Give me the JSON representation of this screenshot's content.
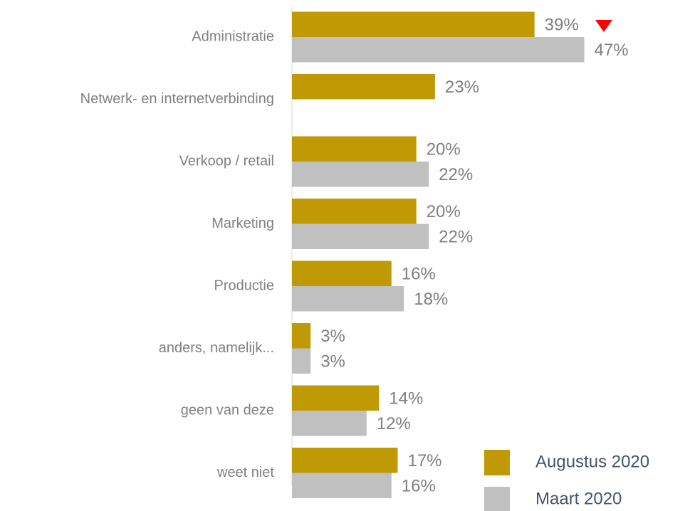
{
  "chart_data": {
    "type": "hbar",
    "categories": [
      "Administratie",
      "Netwerk- en internetverbinding",
      "Verkoop / retail",
      "Marketing",
      "Productie",
      "anders, namelijk...",
      "geen van deze",
      "weet niet"
    ],
    "series": [
      {
        "name": "Augustus 2020",
        "color": "#bf9a05",
        "values": [
          39,
          23,
          20,
          20,
          16,
          3,
          14,
          17
        ],
        "value_labels": [
          "39%",
          "23%",
          "20%",
          "20%",
          "16%",
          "3%",
          "14%",
          "17%"
        ]
      },
      {
        "name": "Maart 2020",
        "color": "#c0c0c0",
        "values": [
          47,
          null,
          22,
          22,
          18,
          3,
          12,
          16
        ],
        "value_labels": [
          "47%",
          null,
          "22%",
          "22%",
          "18%",
          "3%",
          "12%",
          "16%"
        ]
      }
    ],
    "xlim": [
      0,
      64
    ]
  }
}
